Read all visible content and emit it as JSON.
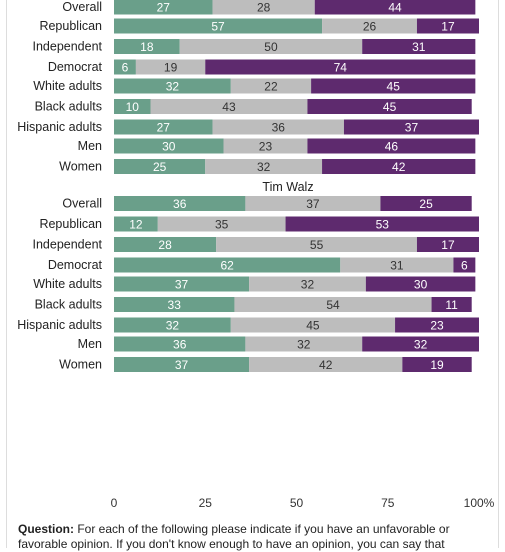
{
  "chart_data": {
    "type": "bar",
    "orientation": "horizontal",
    "stacked": true,
    "xlim": [
      0,
      100
    ],
    "xticks": [
      "0",
      "25",
      "50",
      "75",
      "100%"
    ],
    "colors": {
      "favorable": "#6a9f8a",
      "neutral": "#bdbdbd",
      "unfavorable": "#5e2a6e"
    },
    "sections": [
      {
        "title": "",
        "groups": [
          [
            {
              "label": "Overall",
              "values": [
                27,
                28,
                44
              ]
            }
          ],
          [
            {
              "label": "Republican",
              "values": [
                57,
                26,
                17
              ]
            },
            {
              "label": "Independent",
              "values": [
                18,
                50,
                31
              ]
            },
            {
              "label": "Democrat",
              "values": [
                6,
                19,
                74
              ]
            }
          ],
          [
            {
              "label": "White adults",
              "values": [
                32,
                22,
                45
              ]
            },
            {
              "label": "Black adults",
              "values": [
                10,
                43,
                45
              ]
            },
            {
              "label": "Hispanic adults",
              "values": [
                27,
                36,
                37
              ]
            }
          ],
          [
            {
              "label": "Men",
              "values": [
                30,
                23,
                46
              ]
            },
            {
              "label": "Women",
              "values": [
                25,
                32,
                42
              ]
            }
          ]
        ]
      },
      {
        "title": "Tim Walz",
        "groups": [
          [
            {
              "label": "Overall",
              "values": [
                36,
                37,
                25
              ]
            },
            {
              "label": "Republican",
              "values": [
                12,
                35,
                53
              ]
            },
            {
              "label": "Independent",
              "values": [
                28,
                55,
                17
              ]
            },
            {
              "label": "Democrat",
              "values": [
                62,
                31,
                6
              ]
            }
          ],
          [
            {
              "label": "White adults",
              "values": [
                37,
                32,
                30
              ]
            },
            {
              "label": "Black adults",
              "values": [
                33,
                54,
                11
              ]
            },
            {
              "label": "Hispanic adults",
              "values": [
                32,
                45,
                23
              ]
            }
          ],
          [
            {
              "label": "Men",
              "values": [
                36,
                32,
                32
              ]
            },
            {
              "label": "Women",
              "values": [
                37,
                42,
                19
              ]
            }
          ]
        ]
      }
    ]
  },
  "footnote": {
    "label": "Question:",
    "text": "For each of the following please indicate if you have an unfavorable or favorable opinion. If you don't know enough to have an opinion, you can say that"
  }
}
